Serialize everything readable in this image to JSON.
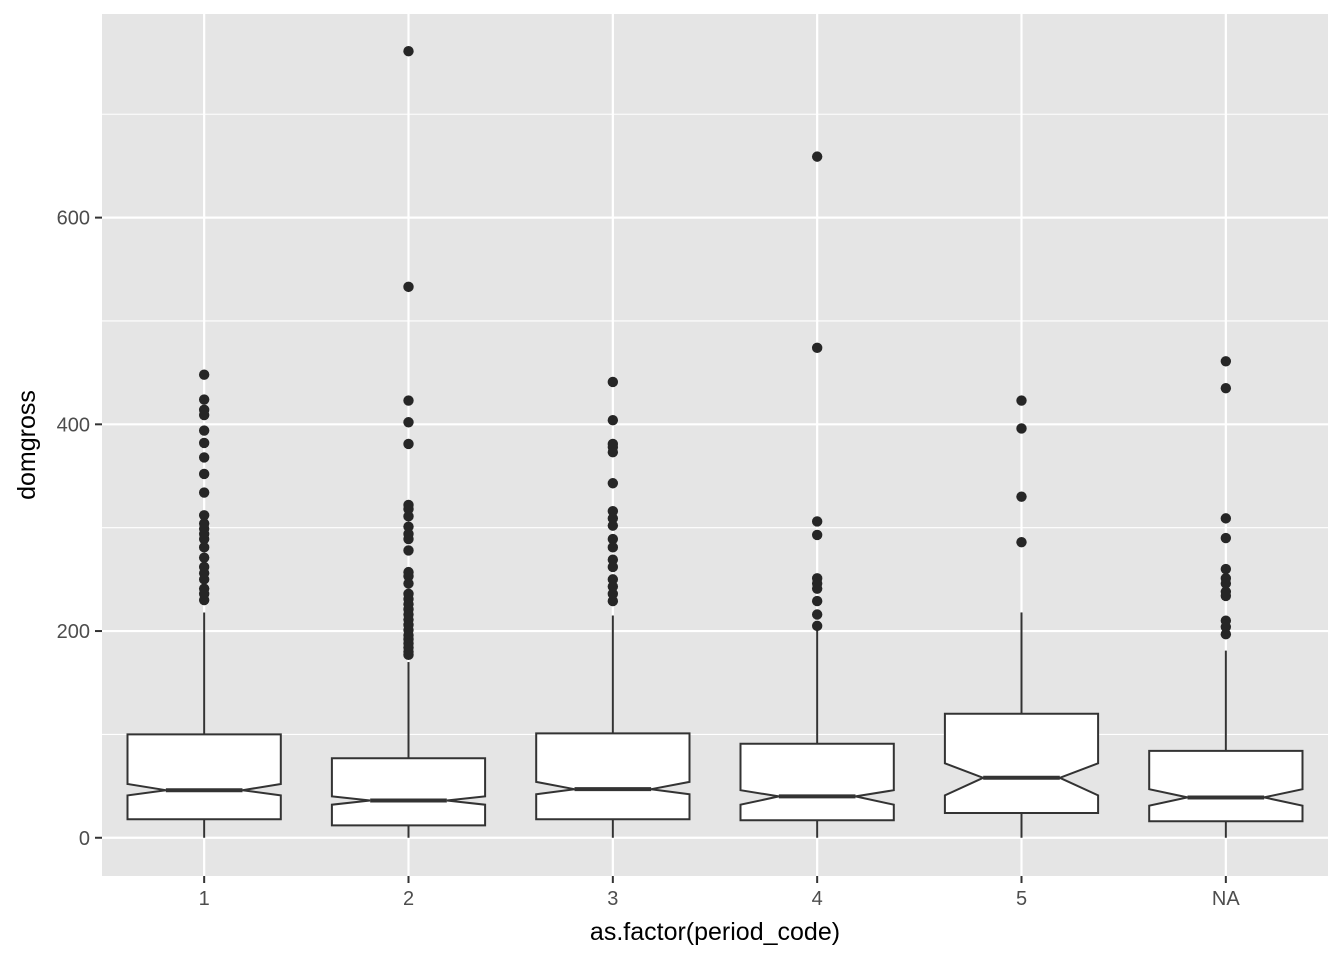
{
  "chart_data": {
    "type": "boxplot",
    "notched": true,
    "xlabel": "as.factor(period_code)",
    "ylabel": "domgross",
    "categories": [
      "1",
      "2",
      "3",
      "4",
      "5",
      "NA"
    ],
    "ylim": [
      -37,
      797
    ],
    "yticks": [
      0,
      200,
      400,
      600
    ],
    "ytick_labels": [
      "0",
      "200",
      "400",
      "600"
    ],
    "grid": true,
    "colors": {
      "panel": "#e5e5e5",
      "grid": "#ffffff",
      "box_fill": "#ffffff",
      "box_line": "#333333",
      "outlier": "#262626",
      "tick_text": "#4d4d4d",
      "title_text": "#000000"
    },
    "boxes": [
      {
        "category": "1",
        "lower_whisker": 0,
        "q1": 18,
        "median": 46,
        "q3": 100,
        "upper_whisker": 218,
        "notch_low": 41,
        "notch_high": 52,
        "outliers": [
          448,
          424,
          414,
          409,
          394,
          382,
          368,
          352,
          334,
          312,
          304,
          299,
          294,
          289,
          281,
          271,
          262,
          256,
          250,
          241,
          236,
          230
        ]
      },
      {
        "category": "2",
        "lower_whisker": 0,
        "q1": 12,
        "median": 36,
        "q3": 77,
        "upper_whisker": 170,
        "notch_low": 32,
        "notch_high": 40,
        "outliers": [
          761,
          533,
          423,
          402,
          381,
          322,
          318,
          311,
          301,
          294,
          289,
          278,
          257,
          253,
          246,
          236,
          231,
          226,
          221,
          216,
          211,
          206,
          201,
          196,
          192,
          188,
          184,
          180,
          177
        ]
      },
      {
        "category": "3",
        "lower_whisker": 0,
        "q1": 18,
        "median": 47,
        "q3": 101,
        "upper_whisker": 215,
        "notch_low": 42,
        "notch_high": 54,
        "outliers": [
          441,
          404,
          381,
          378,
          373,
          343,
          316,
          309,
          302,
          289,
          281,
          269,
          262,
          250,
          243,
          236,
          229
        ]
      },
      {
        "category": "4",
        "lower_whisker": 0,
        "q1": 17,
        "median": 40,
        "q3": 91,
        "upper_whisker": 205,
        "notch_low": 32,
        "notch_high": 46,
        "outliers": [
          659,
          474,
          306,
          293,
          251,
          246,
          241,
          229,
          216,
          205
        ]
      },
      {
        "category": "5",
        "lower_whisker": 0,
        "q1": 24,
        "median": 58,
        "q3": 120,
        "upper_whisker": 218,
        "notch_low": 41,
        "notch_high": 72,
        "outliers": [
          423,
          396,
          330,
          286
        ]
      },
      {
        "category": "NA",
        "lower_whisker": 0,
        "q1": 16,
        "median": 39,
        "q3": 84,
        "upper_whisker": 181,
        "notch_low": 31,
        "notch_high": 47,
        "outliers": [
          461,
          435,
          309,
          290,
          260,
          251,
          246,
          238,
          234,
          210,
          204,
          197
        ]
      }
    ]
  }
}
